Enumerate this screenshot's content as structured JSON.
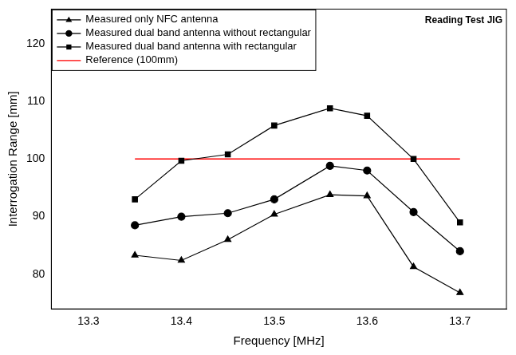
{
  "chart_data": {
    "type": "line",
    "x_label": "Frequency [MHz]",
    "y_label": "Interrogation Range [mm]",
    "x": [
      13.35,
      13.4,
      13.45,
      13.5,
      13.56,
      13.6,
      13.65,
      13.7
    ],
    "series": [
      {
        "name": "Measured only NFC antenna",
        "color": "#000000",
        "marker": "triangle",
        "line_style": "solid",
        "values": [
          83.3,
          82.4,
          86,
          90.4,
          93.8,
          93.6,
          81.3,
          76.8
        ]
      },
      {
        "name": "Measured dual band antenna without rectangular",
        "color": "#000000",
        "marker": "circle",
        "line_style": "solid",
        "values": [
          88.5,
          90,
          90.6,
          93,
          98.8,
          98,
          90.8,
          84
        ]
      },
      {
        "name": "Measured dual band antenna with rectangular",
        "color": "#000000",
        "marker": "square",
        "line_style": "solid",
        "values": [
          93,
          99.7,
          100.8,
          105.8,
          108.8,
          107.5,
          100,
          89
        ]
      },
      {
        "name": "Reference (100mm)",
        "color": "#ff0000",
        "marker": "none",
        "line_style": "solid",
        "values": [
          100,
          100,
          100,
          100,
          100,
          100,
          100,
          100
        ]
      }
    ],
    "xlim": [
      13.26,
      13.75
    ],
    "xticks": [
      13.3,
      13.4,
      13.5,
      13.6,
      13.7
    ],
    "ylim": [
      74,
      126
    ],
    "yticks": [
      80,
      90,
      100,
      110,
      120
    ],
    "grid": false,
    "legend": "upper left",
    "annotation": "Reading Test JIG"
  }
}
